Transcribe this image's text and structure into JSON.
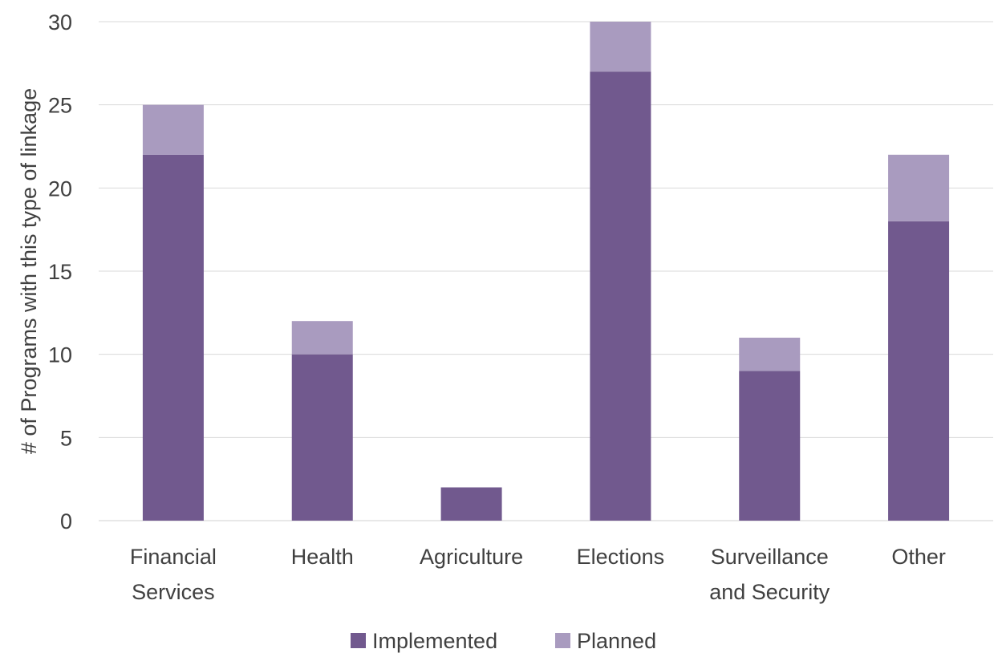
{
  "chart_data": {
    "type": "bar",
    "stacked": true,
    "title": "",
    "xlabel": "",
    "ylabel": "# of Programs with this type of linkage",
    "ylim": [
      0,
      30
    ],
    "yticks": [
      0,
      5,
      10,
      15,
      20,
      25,
      30
    ],
    "grid": "horizontal",
    "legend_position": "bottom",
    "categories": [
      [
        "Financial",
        "Services"
      ],
      [
        "Health"
      ],
      [
        "Agriculture"
      ],
      [
        "Elections"
      ],
      [
        "Surveillance",
        "and Security"
      ],
      [
        "Other"
      ]
    ],
    "series": [
      {
        "name": "Implemented",
        "color": "#71598E",
        "values": [
          22,
          10,
          2,
          27,
          9,
          18
        ]
      },
      {
        "name": "Planned",
        "color": "#A99BBF",
        "values": [
          3,
          2,
          0,
          3,
          2,
          4
        ]
      }
    ]
  }
}
